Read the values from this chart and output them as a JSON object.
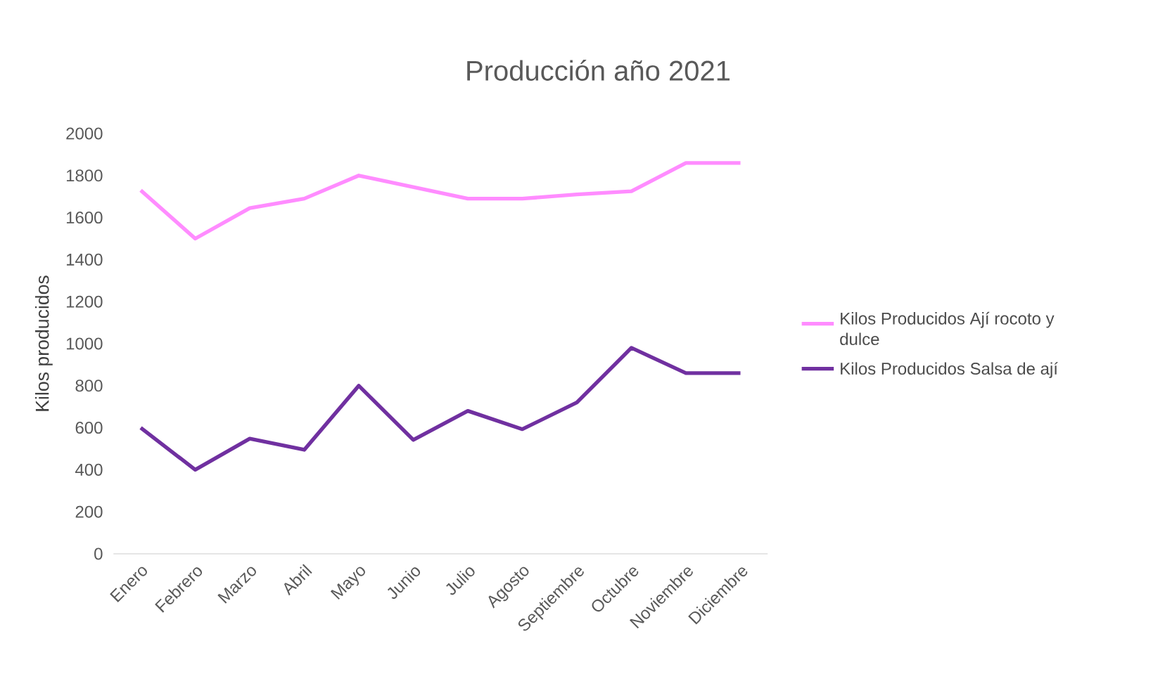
{
  "chart_data": {
    "type": "line",
    "title": "Producción año 2021",
    "ylabel": "Kilos producidos",
    "categories": [
      "Enero",
      "Febrero",
      "Marzo",
      "Abril",
      "Mayo",
      "Junio",
      "Julio",
      "Agosto",
      "Septiembre",
      "Octubre",
      "Noviembre",
      "Diciembre"
    ],
    "series": [
      {
        "name": "Kilos Producidos Ají rocoto y dulce",
        "color": "#ff8cff",
        "values": [
          1730,
          1500,
          1645,
          1690,
          1800,
          1745,
          1690,
          1690,
          1710,
          1725,
          1860,
          1860
        ]
      },
      {
        "name": "Kilos Producidos Salsa de ají",
        "color": "#7030a0",
        "values": [
          600,
          400,
          548,
          495,
          800,
          542,
          680,
          593,
          720,
          980,
          860,
          860
        ]
      }
    ],
    "ylim": [
      0,
      2000
    ],
    "yticks": [
      0,
      200,
      400,
      600,
      800,
      1000,
      1200,
      1400,
      1600,
      1800,
      2000
    ],
    "grid": false,
    "legend": "right",
    "marker": "none",
    "line_style": "solid"
  }
}
